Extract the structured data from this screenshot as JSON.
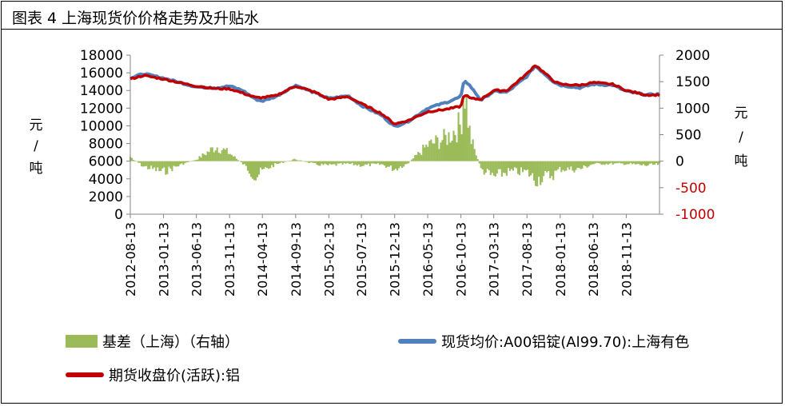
{
  "figure": {
    "title": "图表 4 上海现货价价格走势及升贴水"
  },
  "chart_data": {
    "type": "line",
    "title": "图表 4 上海现货价价格走势及升贴水",
    "ylabel_left": "元/吨",
    "ylabel_right": "元/吨",
    "ylim_left": [
      0,
      18000
    ],
    "ylim_right": [
      -1000,
      2000
    ],
    "yticks_left": [
      "18000",
      "16000",
      "14000",
      "12000",
      "10000",
      "8000",
      "6000",
      "4000",
      "2000",
      "0"
    ],
    "yticks_right": [
      "2000",
      "1500",
      "1000",
      "500",
      "0",
      "-500",
      "-1000"
    ],
    "x_date_range": [
      "2012-08-13",
      "2019-04-15"
    ],
    "xticks": [
      "2012-08-13",
      "2013-01-13",
      "2013-06-13",
      "2013-11-13",
      "2014-04-13",
      "2014-09-13",
      "2015-02-13",
      "2015-07-13",
      "2015-12-13",
      "2016-05-13",
      "2016-10-13",
      "2017-03-13",
      "2017-08-13",
      "2018-01-13",
      "2018-06-13",
      "2018-11-13"
    ],
    "series": [
      {
        "name": "现货均价:A00铝锭(Al99.70):上海有色",
        "axis": "left",
        "color": "#4f81bd",
        "points": [
          [
            "2012-08-13",
            15400
          ],
          [
            "2012-10-13",
            15900
          ],
          [
            "2013-01-13",
            15400
          ],
          [
            "2013-04-13",
            14800
          ],
          [
            "2013-06-13",
            14400
          ],
          [
            "2013-09-13",
            14300
          ],
          [
            "2013-11-13",
            14500
          ],
          [
            "2014-01-13",
            14000
          ],
          [
            "2014-03-13",
            13000
          ],
          [
            "2014-04-13",
            12800
          ],
          [
            "2014-06-13",
            13300
          ],
          [
            "2014-09-13",
            14600
          ],
          [
            "2014-12-13",
            13700
          ],
          [
            "2015-02-13",
            13100
          ],
          [
            "2015-05-13",
            13400
          ],
          [
            "2015-07-13",
            12300
          ],
          [
            "2015-10-13",
            11200
          ],
          [
            "2015-12-13",
            9900
          ],
          [
            "2016-02-13",
            10500
          ],
          [
            "2016-05-13",
            12000
          ],
          [
            "2016-08-13",
            12700
          ],
          [
            "2016-10-13",
            13300
          ],
          [
            "2016-10-28",
            15200
          ],
          [
            "2016-11-25",
            14500
          ],
          [
            "2017-01-13",
            12900
          ],
          [
            "2017-03-13",
            13900
          ],
          [
            "2017-05-13",
            13800
          ],
          [
            "2017-08-13",
            15600
          ],
          [
            "2017-09-20",
            16800
          ],
          [
            "2017-12-13",
            15000
          ],
          [
            "2018-01-13",
            14600
          ],
          [
            "2018-04-13",
            14300
          ],
          [
            "2018-06-13",
            14700
          ],
          [
            "2018-09-13",
            14600
          ],
          [
            "2018-11-13",
            13900
          ],
          [
            "2019-02-13",
            13500
          ],
          [
            "2019-04-15",
            13600
          ]
        ]
      },
      {
        "name": "期货收盘价(活跃):铝",
        "axis": "left",
        "color": "#c00000",
        "points": [
          [
            "2012-08-13",
            15300
          ],
          [
            "2012-10-13",
            15700
          ],
          [
            "2013-01-13",
            15300
          ],
          [
            "2013-04-13",
            14800
          ],
          [
            "2013-06-13",
            14500
          ],
          [
            "2013-09-13",
            14200
          ],
          [
            "2013-11-13",
            14200
          ],
          [
            "2014-01-13",
            13700
          ],
          [
            "2014-03-13",
            13200
          ],
          [
            "2014-04-13",
            13200
          ],
          [
            "2014-06-13",
            13400
          ],
          [
            "2014-09-13",
            14500
          ],
          [
            "2014-12-13",
            13800
          ],
          [
            "2015-02-13",
            13000
          ],
          [
            "2015-05-13",
            13300
          ],
          [
            "2015-07-13",
            12500
          ],
          [
            "2015-10-13",
            11400
          ],
          [
            "2015-12-13",
            10200
          ],
          [
            "2016-02-13",
            10600
          ],
          [
            "2016-05-13",
            11600
          ],
          [
            "2016-08-13",
            11900
          ],
          [
            "2016-10-13",
            12200
          ],
          [
            "2016-10-28",
            13600
          ],
          [
            "2016-11-25",
            13100
          ],
          [
            "2017-01-13",
            13000
          ],
          [
            "2017-03-13",
            14000
          ],
          [
            "2017-05-13",
            14000
          ],
          [
            "2017-08-13",
            15900
          ],
          [
            "2017-09-20",
            16900
          ],
          [
            "2017-12-13",
            15100
          ],
          [
            "2018-01-13",
            14700
          ],
          [
            "2018-04-13",
            14600
          ],
          [
            "2018-06-13",
            14900
          ],
          [
            "2018-09-13",
            14700
          ],
          [
            "2018-11-13",
            14000
          ],
          [
            "2019-02-13",
            13500
          ],
          [
            "2019-04-15",
            13500
          ]
        ]
      },
      {
        "name": "基差（上海）（右轴）",
        "axis": "right",
        "type": "bar",
        "color": "#9bbb59",
        "points": [
          [
            "2012-08-13",
            80
          ],
          [
            "2012-10-13",
            -100
          ],
          [
            "2013-01-13",
            -200
          ],
          [
            "2013-04-13",
            -50
          ],
          [
            "2013-06-13",
            30
          ],
          [
            "2013-09-13",
            280
          ],
          [
            "2013-11-13",
            150
          ],
          [
            "2014-01-13",
            -50
          ],
          [
            "2014-03-13",
            -300
          ],
          [
            "2014-04-13",
            -180
          ],
          [
            "2014-06-13",
            -60
          ],
          [
            "2014-09-13",
            40
          ],
          [
            "2014-12-13",
            -60
          ],
          [
            "2015-02-13",
            -80
          ],
          [
            "2015-05-13",
            -50
          ],
          [
            "2015-07-13",
            -80
          ],
          [
            "2015-10-13",
            -60
          ],
          [
            "2015-12-13",
            -150
          ],
          [
            "2016-02-13",
            -40
          ],
          [
            "2016-05-13",
            300
          ],
          [
            "2016-08-13",
            450
          ],
          [
            "2016-10-13",
            700
          ],
          [
            "2016-10-28",
            1500
          ],
          [
            "2016-11-25",
            450
          ],
          [
            "2017-01-13",
            -150
          ],
          [
            "2017-03-13",
            -300
          ],
          [
            "2017-05-13",
            -200
          ],
          [
            "2017-08-13",
            -200
          ],
          [
            "2017-09-20",
            -350
          ],
          [
            "2017-12-13",
            -250
          ],
          [
            "2018-01-13",
            -150
          ],
          [
            "2018-04-13",
            -150
          ],
          [
            "2018-06-13",
            -50
          ],
          [
            "2018-09-13",
            -50
          ],
          [
            "2018-11-13",
            -50
          ],
          [
            "2019-02-13",
            -80
          ],
          [
            "2019-04-15",
            -60
          ]
        ]
      }
    ],
    "legend": [
      "基差（上海）（右轴）",
      "现货均价:A00铝锭(Al99.70):上海有色",
      "期货收盘价(活跃):铝"
    ],
    "legend_position": "bottom",
    "grid": false
  },
  "axis_labels": {
    "left_chars": [
      "元",
      "/",
      "吨"
    ],
    "right_chars": [
      "元",
      "/",
      "吨"
    ]
  },
  "legend_labels": {
    "basis": "基差（上海）（右轴）",
    "spot": "现货均价:A00铝锭(Al99.70):上海有色",
    "futures": "期货收盘价(活跃):铝"
  },
  "colors": {
    "spot": "#4f81bd",
    "futures": "#c00000",
    "basis": "#9bbb59",
    "neg_tick": "#c00000"
  }
}
